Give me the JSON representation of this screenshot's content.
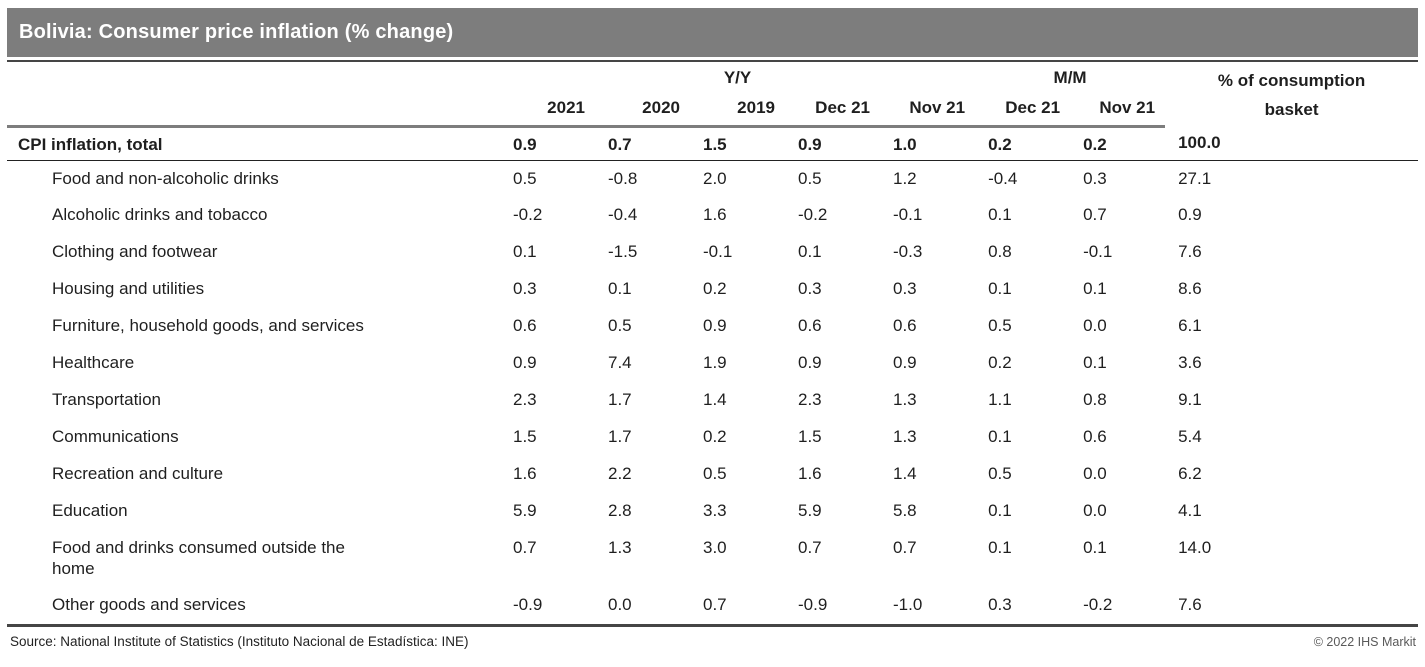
{
  "title": "Bolivia: Consumer price inflation (% change)",
  "chart_data": {
    "type": "table",
    "title": "Bolivia: Consumer price inflation (% change)",
    "group_headers": [
      {
        "label": "Y/Y",
        "columns_spanned": 5
      },
      {
        "label": "M/M",
        "columns_spanned": 2
      }
    ],
    "columns": [
      "2021",
      "2020",
      "2019",
      "Dec 21",
      "Nov 21",
      "Dec 21",
      "Nov 21",
      "% of consumption basket"
    ],
    "basket_header": {
      "line1": "% of consumption",
      "line2": "basket"
    },
    "rows": [
      {
        "label": "CPI inflation, total",
        "is_total": true,
        "values": [
          0.9,
          0.7,
          1.5,
          0.9,
          1.0,
          0.2,
          0.2,
          100.0
        ]
      },
      {
        "label": "Food and non-alcoholic drinks",
        "is_total": false,
        "values": [
          0.5,
          -0.8,
          2.0,
          0.5,
          1.2,
          -0.4,
          0.3,
          27.1
        ]
      },
      {
        "label": "Alcoholic drinks and tobacco",
        "is_total": false,
        "values": [
          -0.2,
          -0.4,
          1.6,
          -0.2,
          -0.1,
          0.1,
          0.7,
          0.9
        ]
      },
      {
        "label": "Clothing and footwear",
        "is_total": false,
        "values": [
          0.1,
          -1.5,
          -0.1,
          0.1,
          -0.3,
          0.8,
          -0.1,
          7.6
        ]
      },
      {
        "label": "Housing and utilities",
        "is_total": false,
        "values": [
          0.3,
          0.1,
          0.2,
          0.3,
          0.3,
          0.1,
          0.1,
          8.6
        ]
      },
      {
        "label": "Furniture, household goods, and services",
        "is_total": false,
        "values": [
          0.6,
          0.5,
          0.9,
          0.6,
          0.6,
          0.5,
          0.0,
          6.1
        ]
      },
      {
        "label": "Healthcare",
        "is_total": false,
        "values": [
          0.9,
          7.4,
          1.9,
          0.9,
          0.9,
          0.2,
          0.1,
          3.6
        ]
      },
      {
        "label": "Transportation",
        "is_total": false,
        "values": [
          2.3,
          1.7,
          1.4,
          2.3,
          1.3,
          1.1,
          0.8,
          9.1
        ]
      },
      {
        "label": "Communications",
        "is_total": false,
        "values": [
          1.5,
          1.7,
          0.2,
          1.5,
          1.3,
          0.1,
          0.6,
          5.4
        ]
      },
      {
        "label": "Recreation and culture",
        "is_total": false,
        "values": [
          1.6,
          2.2,
          0.5,
          1.6,
          1.4,
          0.5,
          0.0,
          6.2
        ]
      },
      {
        "label": "Education",
        "is_total": false,
        "values": [
          5.9,
          2.8,
          3.3,
          5.9,
          5.8,
          0.1,
          0.0,
          4.1
        ]
      },
      {
        "label": "Food and drinks consumed outside the home",
        "is_total": false,
        "values": [
          0.7,
          1.3,
          3.0,
          0.7,
          0.7,
          0.1,
          0.1,
          14.0
        ]
      },
      {
        "label": "Other goods and services",
        "is_total": false,
        "values": [
          -0.9,
          0.0,
          0.7,
          -0.9,
          -1.0,
          0.3,
          -0.2,
          7.6
        ]
      }
    ]
  },
  "footer": {
    "source": "Source: National Institute of Statistics (Instituto Nacional de Estadística: INE)",
    "copyright": "© 2022 IHS Markit"
  },
  "colors": {
    "titlebar_bg": "#7d7d7d",
    "titlebar_text": "#ffffff",
    "rule_gray": "#7d7d7d",
    "rule_dark": "#454545",
    "text": "#1f1f1f",
    "copyright_text": "#595959"
  }
}
